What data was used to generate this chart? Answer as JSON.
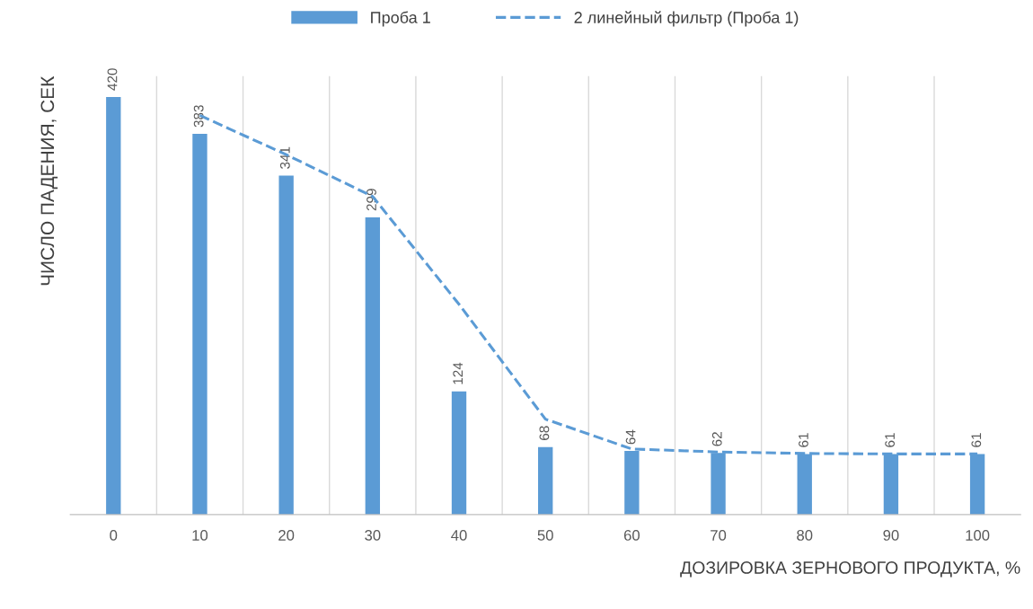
{
  "chart_data": {
    "type": "bar",
    "xlabel": "ДОЗИРОВКА ЗЕРНОВОГО ПРОДУКТА, %",
    "ylabel": "ЧИСЛО ПАДЕНИЯ, СЕК",
    "categories": [
      "0",
      "10",
      "20",
      "30",
      "40",
      "50",
      "60",
      "70",
      "80",
      "90",
      "100"
    ],
    "series": [
      {
        "name": "Проба 1",
        "color": "#5b9bd5",
        "values": [
          420,
          383,
          341,
          299,
          124,
          68,
          64,
          62,
          61,
          61,
          61
        ],
        "value_labels": [
          "420",
          "383",
          "341",
          "299",
          "124",
          "68",
          "64",
          "62",
          "61",
          "61",
          "61"
        ]
      },
      {
        "name": "2 линейный фильтр (Проба 1)",
        "type": "line",
        "color": "#5b9bd5",
        "line_style": "dashed",
        "values": [
          null,
          401.5,
          362,
          320,
          211.5,
          96,
          66,
          63,
          61.5,
          61,
          61
        ]
      }
    ],
    "grid": "x",
    "legend": "top",
    "tick_labels": "x"
  }
}
